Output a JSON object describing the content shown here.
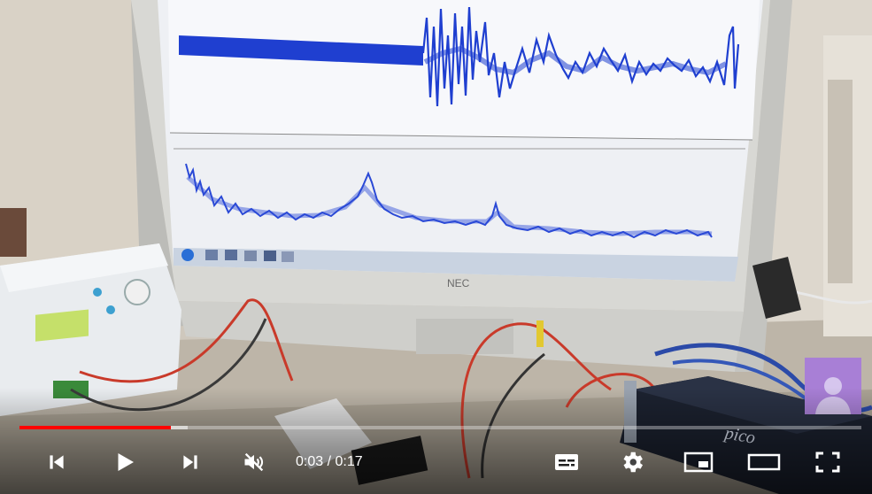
{
  "player": {
    "progress_fraction": 0.18,
    "loaded_fraction": 0.2,
    "time_current": "0:03",
    "time_separator": " / ",
    "time_total": "0:17",
    "colors": {
      "progress": "#ff0000",
      "avatar": "#a87fd6"
    }
  },
  "scene": {
    "monitor_brand": "NEC",
    "device_brand": "pico"
  },
  "controls": {
    "icons": [
      "skip-previous-icon",
      "play-icon",
      "skip-next-icon",
      "muted-volume-icon",
      "subtitles-icon",
      "settings-gear-icon",
      "miniplayer-icon",
      "theater-mode-icon",
      "fullscreen-icon"
    ]
  }
}
